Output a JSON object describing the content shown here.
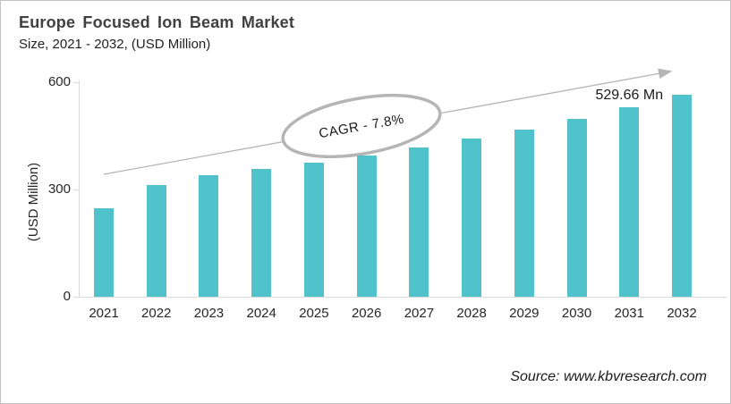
{
  "header": {
    "title": "Europe Focused Ion Beam Market",
    "subtitle": "Size, 2021 - 2032, (USD Million)"
  },
  "chart_data": {
    "type": "bar",
    "categories": [
      "2021",
      "2022",
      "2023",
      "2024",
      "2025",
      "2026",
      "2027",
      "2028",
      "2029",
      "2030",
      "2031",
      "2032"
    ],
    "values": [
      248,
      312,
      340,
      357,
      376,
      394,
      417,
      442,
      468,
      497,
      529.66,
      566
    ],
    "title": "Europe Focused Ion Beam Market",
    "xlabel": "",
    "ylabel": "(USD Million)",
    "yticks": [
      0,
      300,
      600
    ],
    "ylim": [
      0,
      600
    ],
    "grid": false,
    "legend": "none",
    "bar_color": "#4FC2CC",
    "axis_color": "#d9d9d9",
    "trend_line_color": "#b5b5b5",
    "cagr_label": "CAGR - 7.8%",
    "annotation": {
      "label": "529.66 Mn",
      "category": "2031",
      "value": 529.66
    }
  },
  "footer": {
    "source": "Source: www.kbvresearch.com"
  }
}
